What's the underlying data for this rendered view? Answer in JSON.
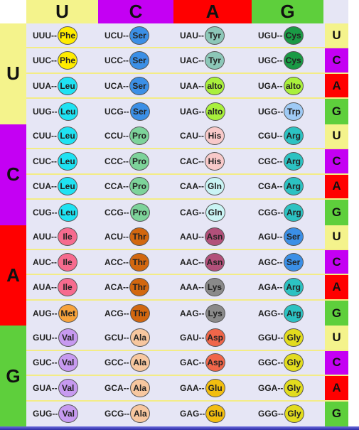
{
  "colors": {
    "U": "#f4f38c",
    "C": "#c400f3",
    "A": "#ff0000",
    "G": "#5ecf3c",
    "bg": "#e6e6f5"
  },
  "header": {
    "columns": [
      "U",
      "C",
      "A",
      "G"
    ]
  },
  "blocks": [
    {
      "first": "U",
      "rows": [
        {
          "third": "U",
          "cells": [
            {
              "codon": "UUU",
              "aa": "Phe",
              "color": "#ffec00"
            },
            {
              "codon": "UCU",
              "aa": "Ser",
              "color": "#3b8fe6"
            },
            {
              "codon": "UAU",
              "aa": "Tyr",
              "color": "#8cc7b8"
            },
            {
              "codon": "UGU",
              "aa": "Cys",
              "color": "#1a9a45"
            }
          ]
        },
        {
          "third": "C",
          "cells": [
            {
              "codon": "UUC",
              "aa": "Phe",
              "color": "#ffec00"
            },
            {
              "codon": "UCC",
              "aa": "Ser",
              "color": "#3b8fe6"
            },
            {
              "codon": "UAC",
              "aa": "Tyr",
              "color": "#8cc7b8"
            },
            {
              "codon": "UGC",
              "aa": "Cys",
              "color": "#1a9a45"
            }
          ]
        },
        {
          "third": "A",
          "cells": [
            {
              "codon": "UUA",
              "aa": "Leu",
              "color": "#1fe2f2"
            },
            {
              "codon": "UCA",
              "aa": "Ser",
              "color": "#3b8fe6"
            },
            {
              "codon": "UAA",
              "aa": "alto",
              "color": "#a9f03c"
            },
            {
              "codon": "UGA",
              "aa": "alto",
              "color": "#a9f03c"
            }
          ]
        },
        {
          "third": "G",
          "cells": [
            {
              "codon": "UUG",
              "aa": "Leu",
              "color": "#1fe2f2"
            },
            {
              "codon": "UCG",
              "aa": "Ser",
              "color": "#3b8fe6"
            },
            {
              "codon": "UAG",
              "aa": "alto",
              "color": "#a9f03c"
            },
            {
              "codon": "UGG",
              "aa": "Trp",
              "color": "#9fcaf5"
            }
          ]
        }
      ]
    },
    {
      "first": "C",
      "rows": [
        {
          "third": "U",
          "cells": [
            {
              "codon": "CUU",
              "aa": "Leu",
              "color": "#1fe2f2"
            },
            {
              "codon": "CCU",
              "aa": "Pro",
              "color": "#7dd39a"
            },
            {
              "codon": "CAU",
              "aa": "His",
              "color": "#f8c9c9"
            },
            {
              "codon": "CGU",
              "aa": "Arg",
              "color": "#2cc2c2"
            }
          ]
        },
        {
          "third": "C",
          "cells": [
            {
              "codon": "CUC",
              "aa": "Leu",
              "color": "#1fe2f2"
            },
            {
              "codon": "CCC",
              "aa": "Pro",
              "color": "#7dd39a"
            },
            {
              "codon": "CAC",
              "aa": "His",
              "color": "#f8c9c9"
            },
            {
              "codon": "CGC",
              "aa": "Arg",
              "color": "#2cc2c2"
            }
          ]
        },
        {
          "third": "A",
          "cells": [
            {
              "codon": "CUA",
              "aa": "Leu",
              "color": "#1fe2f2"
            },
            {
              "codon": "CCA",
              "aa": "Pro",
              "color": "#7dd39a"
            },
            {
              "codon": "CAA",
              "aa": "Gln",
              "color": "#c9f4f4"
            },
            {
              "codon": "CGA",
              "aa": "Arg",
              "color": "#2cc2c2"
            }
          ]
        },
        {
          "third": "G",
          "cells": [
            {
              "codon": "CUG",
              "aa": "Leu",
              "color": "#1fe2f2"
            },
            {
              "codon": "CCG",
              "aa": "Pro",
              "color": "#7dd39a"
            },
            {
              "codon": "CAG",
              "aa": "Gln",
              "color": "#c9f4f4"
            },
            {
              "codon": "CGG",
              "aa": "Arg",
              "color": "#2cc2c2"
            }
          ]
        }
      ]
    },
    {
      "first": "A",
      "rows": [
        {
          "third": "U",
          "cells": [
            {
              "codon": "AUU",
              "aa": "Ile",
              "color": "#f66b8e"
            },
            {
              "codon": "ACU",
              "aa": "Thr",
              "color": "#d2670f"
            },
            {
              "codon": "AAU",
              "aa": "Asn",
              "color": "#b2507a"
            },
            {
              "codon": "AGU",
              "aa": "Ser",
              "color": "#3b8fe6"
            }
          ]
        },
        {
          "third": "C",
          "cells": [
            {
              "codon": "AUC",
              "aa": "Ile",
              "color": "#f66b8e"
            },
            {
              "codon": "ACC",
              "aa": "Thr",
              "color": "#d2670f"
            },
            {
              "codon": "AAC",
              "aa": "Asn",
              "color": "#b2507a"
            },
            {
              "codon": "AGC",
              "aa": "Ser",
              "color": "#3b8fe6"
            }
          ]
        },
        {
          "third": "A",
          "cells": [
            {
              "codon": "AUA",
              "aa": "Ile",
              "color": "#f66b8e"
            },
            {
              "codon": "ACA",
              "aa": "Thr",
              "color": "#d2670f"
            },
            {
              "codon": "AAA",
              "aa": "Lys",
              "color": "#8a8a8a"
            },
            {
              "codon": "AGA",
              "aa": "Arg",
              "color": "#2cc2c2"
            }
          ]
        },
        {
          "third": "G",
          "cells": [
            {
              "codon": "AUG",
              "aa": "Met",
              "color": "#f7a33c"
            },
            {
              "codon": "ACG",
              "aa": "Thr",
              "color": "#d2670f"
            },
            {
              "codon": "AAG",
              "aa": "Lys",
              "color": "#8a8a8a"
            },
            {
              "codon": "AGG",
              "aa": "Arg",
              "color": "#2cc2c2"
            }
          ]
        }
      ]
    },
    {
      "first": "G",
      "rows": [
        {
          "third": "U",
          "cells": [
            {
              "codon": "GUU",
              "aa": "Val",
              "color": "#c79af0"
            },
            {
              "codon": "GCU",
              "aa": "Ala",
              "color": "#f7c79f"
            },
            {
              "codon": "GAU",
              "aa": "Asp",
              "color": "#f0664a"
            },
            {
              "codon": "GGU",
              "aa": "Gly",
              "color": "#e2dc1e"
            }
          ]
        },
        {
          "third": "C",
          "cells": [
            {
              "codon": "GUC",
              "aa": "Val",
              "color": "#c79af0"
            },
            {
              "codon": "GCC",
              "aa": "Ala",
              "color": "#f7c79f"
            },
            {
              "codon": "GAC",
              "aa": "Asp",
              "color": "#f0664a"
            },
            {
              "codon": "GGC",
              "aa": "Gly",
              "color": "#e2dc1e"
            }
          ]
        },
        {
          "third": "A",
          "cells": [
            {
              "codon": "GUA",
              "aa": "Val",
              "color": "#c79af0"
            },
            {
              "codon": "GCA",
              "aa": "Ala",
              "color": "#f7c79f"
            },
            {
              "codon": "GAA",
              "aa": "Glu",
              "color": "#f2be10"
            },
            {
              "codon": "GGA",
              "aa": "Gly",
              "color": "#e2dc1e"
            }
          ]
        },
        {
          "third": "G",
          "cells": [
            {
              "codon": "GUG",
              "aa": "Val",
              "color": "#c79af0"
            },
            {
              "codon": "GCG",
              "aa": "Ala",
              "color": "#f7c79f"
            },
            {
              "codon": "GAG",
              "aa": "Glu",
              "color": "#f2be10"
            },
            {
              "codon": "GGG",
              "aa": "Gly",
              "color": "#e2dc1e"
            }
          ]
        }
      ]
    }
  ]
}
